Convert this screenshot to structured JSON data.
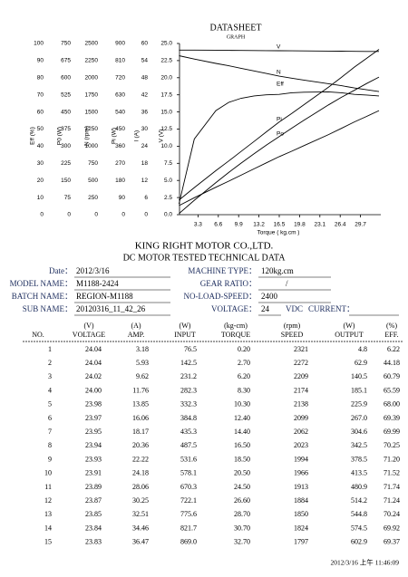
{
  "header": {
    "title": "DATASHEET",
    "subtitle": "GRAPH"
  },
  "chart_data": {
    "type": "line",
    "x_label": "Torque ( kg.cm )",
    "xlim": [
      0,
      33
    ],
    "xticks": [
      3.3,
      6.6,
      9.9,
      13.2,
      16.5,
      19.8,
      23.1,
      26.4,
      29.7
    ],
    "color": "#000000",
    "axes": [
      {
        "label": "Eff (%)",
        "ylim": [
          0,
          100
        ],
        "yticks": [
          0,
          10,
          20,
          30,
          40,
          50,
          60,
          70,
          80,
          90,
          100
        ]
      },
      {
        "label": "P0 (W)",
        "ylim": [
          0,
          750
        ],
        "yticks": [
          0,
          75,
          150,
          225,
          300,
          375,
          450,
          525,
          600,
          675,
          750
        ]
      },
      {
        "label": "N (rpm)",
        "ylim": [
          0,
          2500
        ],
        "yticks": [
          0,
          250,
          500,
          750,
          1000,
          1250,
          1500,
          1750,
          2000,
          2250,
          2500
        ]
      },
      {
        "label": "Pi (W)",
        "ylim": [
          0,
          900
        ],
        "yticks": [
          0,
          90,
          180,
          270,
          360,
          450,
          540,
          630,
          720,
          810,
          900
        ]
      },
      {
        "label": "I (A)",
        "ylim": [
          0,
          60
        ],
        "yticks": [
          0,
          6,
          12,
          18,
          24,
          30,
          36,
          42,
          48,
          54,
          60
        ]
      },
      {
        "label": "V (V)",
        "ylim": [
          0,
          25
        ],
        "yticks": [
          {
            "value": 0,
            "label": "0.0"
          },
          {
            "value": 2.5,
            "label": "2.5"
          },
          {
            "value": 5,
            "label": "5.0"
          },
          {
            "value": 7.5,
            "label": "7.5"
          },
          {
            "value": 10,
            "label": "10.0"
          },
          {
            "value": 12.5,
            "label": "12.5"
          },
          {
            "value": 15,
            "label": "15.0"
          },
          {
            "value": 17.5,
            "label": "17.5"
          },
          {
            "value": 20,
            "label": "20.0"
          },
          {
            "value": 22.5,
            "label": "22.5"
          },
          {
            "value": 25,
            "label": "25.0"
          }
        ]
      }
    ],
    "series": [
      {
        "name": "V"
      },
      {
        "name": "N"
      },
      {
        "name": "Eff"
      },
      {
        "name": "Pi"
      },
      {
        "name": "Po"
      }
    ]
  },
  "company": {
    "name": "KING RIGHT MOTOR CO.,LTD.",
    "subtitle": "DC MOTOR TESTED TECHNICAL DATA"
  },
  "info": {
    "left": [
      {
        "label": "Date：",
        "value": "2012/3/16"
      },
      {
        "label": "MODEL NAME：",
        "value": "M1188-2424"
      },
      {
        "label": "BATCH NAME：",
        "value": "REGION-M1188"
      },
      {
        "label": "SUB NAME：",
        "value": "20120316_11_42_26"
      }
    ],
    "right": [
      {
        "label": "MACHINE TYPE：",
        "value": "120kg.cm"
      },
      {
        "label": "GEAR RATIO：",
        "value": "/"
      },
      {
        "label": "NO-LOAD-SPEED：",
        "value": "2400"
      },
      {
        "label": "VOLTAGE：",
        "value": "24"
      }
    ],
    "voltage_unit": "VDC",
    "current_label": "CURRENT："
  },
  "table": {
    "units": [
      "(V)",
      "(A)",
      "(W)",
      "(kg-cm)",
      "(rpm)",
      "(W)",
      "(%)"
    ],
    "columns": [
      "NO.",
      "VOLTAGE",
      "AMP.",
      "INPUT",
      "TORQUE",
      "SPEED",
      "OUTPUT",
      "EFF."
    ],
    "rows": [
      [
        "1",
        "24.04",
        "3.18",
        "76.5",
        "0.20",
        "2321",
        "4.8",
        "6.22"
      ],
      [
        "2",
        "24.04",
        "5.93",
        "142.5",
        "2.70",
        "2272",
        "62.9",
        "44.18"
      ],
      [
        "3",
        "24.02",
        "9.62",
        "231.2",
        "6.20",
        "2209",
        "140.5",
        "60.79"
      ],
      [
        "4",
        "24.00",
        "11.76",
        "282.3",
        "8.30",
        "2174",
        "185.1",
        "65.59"
      ],
      [
        "5",
        "23.98",
        "13.85",
        "332.3",
        "10.30",
        "2138",
        "225.9",
        "68.00"
      ],
      [
        "6",
        "23.97",
        "16.06",
        "384.8",
        "12.40",
        "2099",
        "267.0",
        "69.39"
      ],
      [
        "7",
        "23.95",
        "18.17",
        "435.3",
        "14.40",
        "2062",
        "304.6",
        "69.99"
      ],
      [
        "8",
        "23.94",
        "20.36",
        "487.5",
        "16.50",
        "2023",
        "342.5",
        "70.25"
      ],
      [
        "9",
        "23.93",
        "22.22",
        "531.6",
        "18.50",
        "1994",
        "378.5",
        "71.20"
      ],
      [
        "10",
        "23.91",
        "24.18",
        "578.1",
        "20.50",
        "1966",
        "413.5",
        "71.52"
      ],
      [
        "11",
        "23.89",
        "28.06",
        "670.3",
        "24.50",
        "1913",
        "480.9",
        "71.74"
      ],
      [
        "12",
        "23.87",
        "30.25",
        "722.1",
        "26.60",
        "1884",
        "514.2",
        "71.24"
      ],
      [
        "13",
        "23.85",
        "32.51",
        "775.6",
        "28.70",
        "1850",
        "544.8",
        "70.24"
      ],
      [
        "14",
        "23.84",
        "34.46",
        "821.7",
        "30.70",
        "1824",
        "574.5",
        "69.92"
      ],
      [
        "15",
        "23.83",
        "36.47",
        "869.0",
        "32.70",
        "1797",
        "602.9",
        "69.37"
      ]
    ]
  },
  "footer": {
    "timestamp": "2012/3/16 上午 11:46:09"
  }
}
